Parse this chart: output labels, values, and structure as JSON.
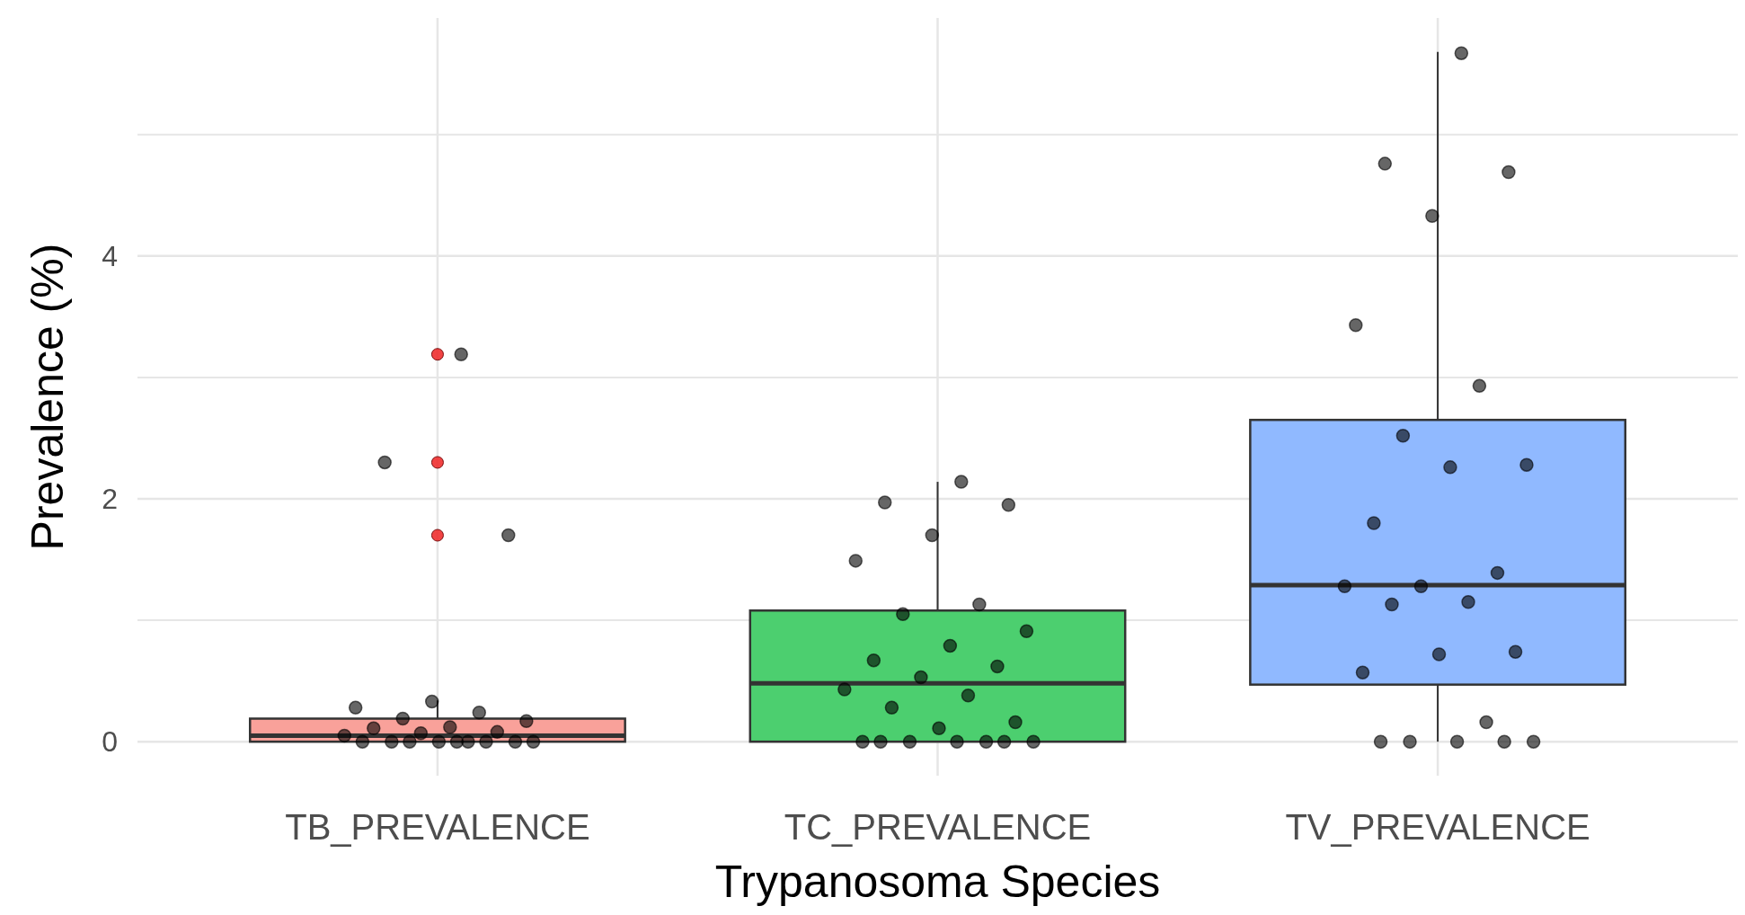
{
  "chart_data": {
    "type": "box",
    "xlabel": "Trypanosoma Species",
    "ylabel": "Prevalence (%)",
    "categories": [
      "TB_PREVALENCE",
      "TC_PREVALENCE",
      "TV_PREVALENCE"
    ],
    "colors": [
      "#f9a19a",
      "#4ccf6f",
      "#90b9ff"
    ],
    "boxes": [
      {
        "low": 0,
        "q1": 0,
        "median": 0.05,
        "q3": 0.19,
        "high": 0.34,
        "outliers": [
          3.19,
          2.3,
          1.7
        ]
      },
      {
        "low": 0,
        "q1": 0,
        "median": 0.48,
        "q3": 1.08,
        "high": 2.14
      },
      {
        "low": 0,
        "q1": 0.47,
        "median": 1.29,
        "q3": 2.65,
        "high": 5.68
      }
    ],
    "series": [
      {
        "type": "scatter",
        "color": "#000000",
        "x": [
          "TB_PREVALENCE",
          "TB_PREVALENCE",
          "TB_PREVALENCE",
          "TB_PREVALENCE",
          "TB_PREVALENCE",
          "TB_PREVALENCE",
          "TB_PREVALENCE",
          "TB_PREVALENCE",
          "TB_PREVALENCE",
          "TB_PREVALENCE",
          "TB_PREVALENCE",
          "TB_PREVALENCE",
          "TB_PREVALENCE",
          "TB_PREVALENCE",
          "TB_PREVALENCE",
          "TB_PREVALENCE",
          "TB_PREVALENCE",
          "TB_PREVALENCE",
          "TB_PREVALENCE",
          "TB_PREVALENCE",
          "TB_PREVALENCE",
          "TB_PREVALENCE",
          "TC_PREVALENCE",
          "TC_PREVALENCE",
          "TC_PREVALENCE",
          "TC_PREVALENCE",
          "TC_PREVALENCE",
          "TC_PREVALENCE",
          "TC_PREVALENCE",
          "TC_PREVALENCE",
          "TC_PREVALENCE",
          "TC_PREVALENCE",
          "TC_PREVALENCE",
          "TC_PREVALENCE",
          "TC_PREVALENCE",
          "TC_PREVALENCE",
          "TC_PREVALENCE",
          "TC_PREVALENCE",
          "TC_PREVALENCE",
          "TC_PREVALENCE",
          "TC_PREVALENCE",
          "TC_PREVALENCE",
          "TC_PREVALENCE",
          "TC_PREVALENCE",
          "TC_PREVALENCE",
          "TC_PREVALENCE",
          "TV_PREVALENCE",
          "TV_PREVALENCE",
          "TV_PREVALENCE",
          "TV_PREVALENCE",
          "TV_PREVALENCE",
          "TV_PREVALENCE",
          "TV_PREVALENCE",
          "TV_PREVALENCE",
          "TV_PREVALENCE",
          "TV_PREVALENCE",
          "TV_PREVALENCE",
          "TV_PREVALENCE",
          "TV_PREVALENCE",
          "TV_PREVALENCE",
          "TV_PREVALENCE",
          "TV_PREVALENCE",
          "TV_PREVALENCE",
          "TV_PREVALENCE",
          "TV_PREVALENCE",
          "TV_PREVALENCE",
          "TV_PREVALENCE",
          "TV_PREVALENCE",
          "TV_PREVALENCE",
          "TV_PREVALENCE"
        ],
        "values": [
          3.19,
          2.3,
          1.7,
          0.33,
          0.28,
          0.24,
          0.19,
          0.17,
          0.12,
          0.11,
          0.08,
          0.07,
          0.05,
          0,
          0,
          0,
          0,
          0,
          0,
          0,
          0,
          0,
          2.14,
          1.97,
          1.95,
          1.7,
          1.49,
          1.13,
          1.05,
          0.91,
          0.79,
          0.67,
          0.62,
          0.53,
          0.43,
          0.38,
          0.28,
          0.16,
          0.11,
          0,
          0,
          0,
          0,
          0,
          0,
          0,
          5.67,
          4.76,
          4.69,
          4.33,
          3.43,
          2.93,
          2.52,
          2.28,
          2.26,
          1.8,
          1.39,
          1.28,
          1.28,
          1.15,
          1.13,
          0.74,
          0.72,
          0.57,
          0.16,
          0,
          0,
          0,
          0,
          0
        ]
      }
    ],
    "ylim": [
      -0.28,
      5.96
    ],
    "yticks": [
      0,
      {
        "value": 1,
        "label": null
      },
      2,
      {
        "value": 3,
        "label": null
      },
      4,
      {
        "value": 5,
        "label": null
      }
    ],
    "grid": true
  }
}
